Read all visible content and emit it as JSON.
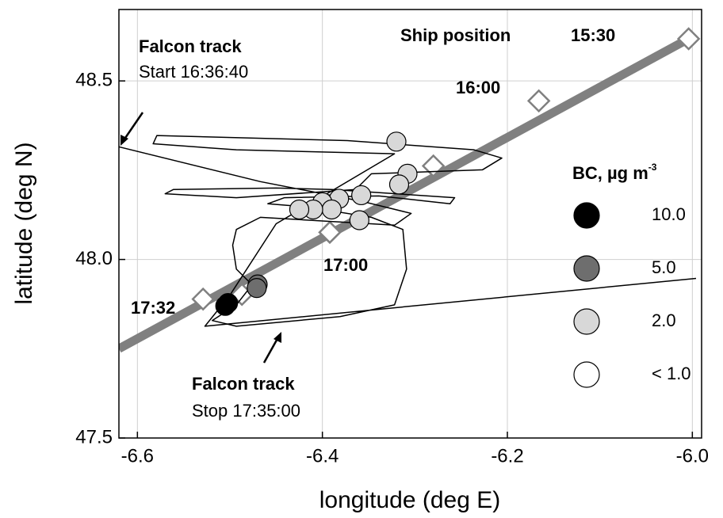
{
  "chart_data": {
    "type": "scatter",
    "xlabel": "longitude (deg E)",
    "ylabel": "latitude (deg N)",
    "xlim": [
      -6.62,
      -5.99
    ],
    "ylim": [
      47.5,
      48.7
    ],
    "xticks": [
      -6.6,
      -6.4,
      -6.2,
      {
        "value": -6,
        "label": "-6.0"
      }
    ],
    "yticks": [
      47.5,
      {
        "value": 48,
        "label": "48.0"
      },
      48.5
    ],
    "grid": true,
    "tracks": [
      {
        "name": "Ship position",
        "color": "#808080",
        "x": [
          -6.62,
          -6.004
        ],
        "values": [
          47.75,
          48.618
        ],
        "markers": {
          "x": [
            -6.004,
            -6.166,
            -6.28,
            -6.392,
            -6.487,
            -6.529
          ],
          "values": [
            48.618,
            48.444,
            48.262,
            48.076,
            47.902,
            47.889
          ]
        }
      },
      {
        "color": "#000000",
        "x": [
          -6.621,
          -6.467,
          -6.356,
          -6.304,
          -6.322,
          -6.467,
          -6.493,
          -6.497,
          -6.493,
          -6.476,
          -6.493,
          -6.519,
          -6.493,
          -6.381,
          -6.322,
          -6.309,
          -6.313,
          -6.347,
          -6.416,
          -6.459,
          -6.441,
          -6.339,
          -6.262,
          -6.257,
          -6.39,
          -6.45,
          -6.561,
          -6.57,
          -6.493,
          -6.364,
          -6.347,
          -6.227,
          -6.206,
          -6.236,
          -6.373,
          -6.579,
          -6.583,
          -6.493,
          -6.322,
          -6.45,
          -6.5,
          -6.527,
          -5.996
        ],
        "values": [
          48.316,
          48.218,
          48.162,
          48.129,
          48.096,
          48.118,
          48.084,
          48.04,
          47.973,
          47.929,
          47.873,
          47.829,
          47.813,
          47.84,
          47.873,
          47.973,
          48.084,
          48.118,
          48.147,
          48.156,
          48.173,
          48.178,
          48.156,
          48.173,
          48.196,
          48.2,
          48.196,
          48.184,
          48.173,
          48.196,
          48.24,
          48.251,
          48.284,
          48.307,
          48.333,
          48.347,
          48.324,
          48.307,
          48.296,
          48.1,
          47.9,
          47.813,
          47.947
        ]
      }
    ],
    "series": [
      {
        "name": "10.0",
        "color": "#000000",
        "x": [
          -6.505,
          -6.502
        ],
        "values": [
          47.87,
          47.878
        ]
      },
      {
        "name": "5.0",
        "color": "#6e6e6e",
        "x": [
          -6.47,
          -6.471
        ],
        "values": [
          47.93,
          47.92
        ]
      },
      {
        "name": "2.0",
        "color": "#d8d8d8",
        "x": [
          -6.32,
          -6.308,
          -6.317,
          -6.358,
          -6.382,
          -6.4,
          -6.39,
          -6.41,
          -6.425,
          -6.36
        ],
        "values": [
          48.33,
          48.24,
          48.21,
          48.18,
          48.17,
          48.16,
          48.14,
          48.14,
          48.14,
          48.11
        ]
      },
      {
        "name": "< 1.0",
        "color": "#ffffff",
        "x": [],
        "values": []
      }
    ],
    "legend": {
      "title": "BC, µg m",
      "title_sup": "-3"
    },
    "annotations": [
      "Falcon track",
      "Start 16:36:40",
      "Falcon track",
      "Stop 17:35:00",
      "Ship position",
      "15:30",
      "16:00",
      "17:00",
      "17:32"
    ]
  }
}
